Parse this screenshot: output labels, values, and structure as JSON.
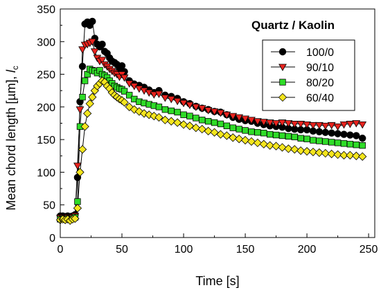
{
  "chart_data": {
    "type": "scatter",
    "title": "",
    "xlabel": "Time [s]",
    "ylabel_text": "Mean chord length [µm], ",
    "ylabel_symbol": "l",
    "ylabel_subscript": "c",
    "xlim": [
      0,
      255
    ],
    "ylim": [
      0,
      350
    ],
    "x_ticks": [
      0,
      50,
      100,
      150,
      200,
      250
    ],
    "y_ticks": [
      0,
      50,
      100,
      150,
      200,
      250,
      300,
      350
    ],
    "grid": false,
    "legend_title": "Quartz / Kaolin",
    "legend_position": "top-right",
    "series": [
      {
        "name": "100/0",
        "marker": "circle",
        "color": "#000000",
        "x": [
          0,
          2,
          4,
          6,
          8,
          10,
          12,
          14,
          16,
          18,
          20,
          22,
          24,
          26,
          28,
          30,
          32,
          34,
          36,
          38,
          40,
          42,
          44,
          46,
          48,
          50,
          52,
          56,
          60,
          64,
          68,
          72,
          76,
          80,
          85,
          90,
          95,
          100,
          105,
          110,
          115,
          120,
          125,
          130,
          135,
          140,
          145,
          150,
          155,
          160,
          165,
          170,
          175,
          180,
          185,
          190,
          195,
          200,
          205,
          210,
          215,
          220,
          225,
          230,
          235,
          240,
          245
        ],
        "y": [
          33,
          33,
          32,
          33,
          32,
          33,
          35,
          92,
          208,
          262,
          327,
          330,
          325,
          331,
          305,
          296,
          292,
          296,
          285,
          282,
          275,
          270,
          268,
          265,
          258,
          263,
          254,
          240,
          235,
          233,
          230,
          226,
          222,
          225,
          218,
          216,
          213,
          208,
          205,
          201,
          198,
          196,
          193,
          192,
          188,
          184,
          181,
          179,
          178,
          175,
          173,
          171,
          170,
          169,
          167,
          166,
          165,
          165,
          163,
          162,
          161,
          160,
          159,
          158,
          157,
          156,
          152
        ]
      },
      {
        "name": "90/10",
        "marker": "triangle-down",
        "color": "#e8231e",
        "x": [
          0,
          2,
          4,
          6,
          8,
          10,
          12,
          14,
          16,
          18,
          20,
          22,
          24,
          26,
          28,
          30,
          32,
          34,
          36,
          38,
          40,
          42,
          44,
          46,
          48,
          50,
          52,
          56,
          60,
          64,
          68,
          72,
          76,
          80,
          85,
          90,
          95,
          100,
          105,
          110,
          115,
          120,
          125,
          130,
          135,
          140,
          145,
          150,
          155,
          160,
          165,
          170,
          175,
          180,
          185,
          190,
          195,
          200,
          205,
          210,
          215,
          220,
          225,
          230,
          235,
          240,
          245
        ],
        "y": [
          30,
          31,
          30,
          31,
          30,
          31,
          33,
          110,
          196,
          288,
          295,
          296,
          298,
          300,
          285,
          275,
          270,
          272,
          265,
          262,
          258,
          255,
          252,
          250,
          246,
          250,
          245,
          236,
          232,
          228,
          225,
          222,
          219,
          220,
          214,
          212,
          209,
          206,
          203,
          200,
          198,
          195,
          193,
          191,
          188,
          186,
          184,
          182,
          180,
          178,
          177,
          176,
          175,
          176,
          175,
          174,
          174,
          173,
          172,
          172,
          171,
          172,
          170,
          173,
          174,
          175,
          173
        ]
      },
      {
        "name": "80/20",
        "marker": "square",
        "color": "#2fdc28",
        "x": [
          0,
          2,
          4,
          6,
          8,
          10,
          12,
          14,
          16,
          18,
          20,
          22,
          24,
          26,
          28,
          30,
          32,
          34,
          36,
          38,
          40,
          42,
          44,
          46,
          48,
          50,
          52,
          56,
          60,
          64,
          68,
          72,
          76,
          80,
          85,
          90,
          95,
          100,
          105,
          110,
          115,
          120,
          125,
          130,
          135,
          140,
          145,
          150,
          155,
          160,
          165,
          170,
          175,
          180,
          185,
          190,
          195,
          200,
          205,
          210,
          215,
          220,
          225,
          230,
          235,
          240,
          245
        ],
        "y": [
          28,
          29,
          28,
          29,
          28,
          29,
          31,
          55,
          170,
          215,
          240,
          250,
          258,
          256,
          255,
          252,
          256,
          250,
          248,
          245,
          240,
          236,
          232,
          230,
          228,
          227,
          224,
          218,
          212,
          208,
          206,
          204,
          202,
          200,
          196,
          194,
          192,
          188,
          186,
          183,
          180,
          178,
          176,
          174,
          171,
          168,
          166,
          164,
          162,
          161,
          160,
          158,
          157,
          156,
          155,
          154,
          152,
          151,
          149,
          148,
          147,
          146,
          145,
          144,
          143,
          142,
          141
        ]
      },
      {
        "name": "60/40",
        "marker": "diamond",
        "color": "#f5e51e",
        "x": [
          0,
          2,
          4,
          6,
          8,
          10,
          12,
          14,
          16,
          18,
          20,
          22,
          24,
          26,
          28,
          30,
          32,
          34,
          36,
          38,
          40,
          42,
          44,
          46,
          48,
          50,
          52,
          56,
          60,
          64,
          68,
          72,
          76,
          80,
          85,
          90,
          95,
          100,
          105,
          110,
          115,
          120,
          125,
          130,
          135,
          140,
          145,
          150,
          155,
          160,
          165,
          170,
          175,
          180,
          185,
          190,
          195,
          200,
          205,
          210,
          215,
          220,
          225,
          230,
          235,
          240,
          245
        ],
        "y": [
          27,
          28,
          27,
          28,
          26,
          28,
          29,
          45,
          100,
          135,
          170,
          190,
          205,
          215,
          225,
          232,
          236,
          240,
          238,
          232,
          228,
          222,
          218,
          215,
          212,
          210,
          207,
          200,
          196,
          193,
          190,
          188,
          186,
          184,
          180,
          178,
          176,
          173,
          171,
          168,
          166,
          163,
          161,
          158,
          156,
          153,
          151,
          149,
          147,
          145,
          143,
          141,
          140,
          138,
          136,
          135,
          133,
          132,
          131,
          130,
          129,
          128,
          127,
          126,
          126,
          125,
          124
        ]
      }
    ]
  }
}
